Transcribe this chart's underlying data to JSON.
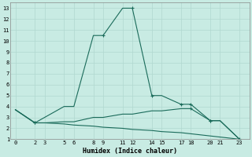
{
  "xlabel": "Humidex (Indice chaleur)",
  "bg_color": "#c8ebe3",
  "grid_color": "#b0d8cf",
  "line_color": "#1a6b5a",
  "xlim": [
    -0.5,
    24
  ],
  "ylim": [
    1,
    13.5
  ],
  "xticks": [
    0,
    2,
    3,
    5,
    6,
    8,
    9,
    11,
    12,
    14,
    15,
    17,
    18,
    20,
    21,
    23
  ],
  "yticks": [
    1,
    2,
    3,
    4,
    5,
    6,
    7,
    8,
    9,
    10,
    11,
    12,
    13
  ],
  "line1_x": [
    0,
    2,
    5,
    6,
    8,
    9,
    11,
    12,
    14,
    15,
    17,
    18,
    20,
    21,
    23
  ],
  "line1_y": [
    3.7,
    2.5,
    4.0,
    4.0,
    10.5,
    10.5,
    13.0,
    13.0,
    5.0,
    5.0,
    4.2,
    4.2,
    2.7,
    2.7,
    1.0
  ],
  "line1_markers": [
    1,
    5,
    7,
    8,
    10,
    11,
    12,
    14
  ],
  "line2_x": [
    0,
    2,
    3,
    5,
    6,
    8,
    9,
    11,
    12,
    14,
    15,
    17,
    18,
    20,
    21,
    23
  ],
  "line2_y": [
    3.7,
    2.5,
    2.5,
    2.6,
    2.6,
    3.0,
    3.0,
    3.3,
    3.3,
    3.6,
    3.6,
    3.8,
    3.8,
    2.7,
    2.7,
    1.0
  ],
  "line2_markers": [
    1,
    12,
    13
  ],
  "line3_x": [
    0,
    2,
    3,
    5,
    6,
    8,
    9,
    11,
    12,
    14,
    15,
    17,
    18,
    20,
    21,
    23
  ],
  "line3_y": [
    3.7,
    2.5,
    2.5,
    2.4,
    2.3,
    2.2,
    2.1,
    2.0,
    1.9,
    1.8,
    1.7,
    1.6,
    1.5,
    1.3,
    1.2,
    1.0
  ]
}
